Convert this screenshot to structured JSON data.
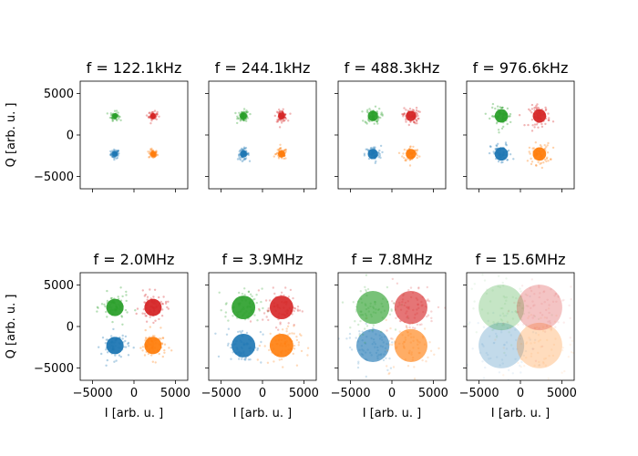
{
  "chart_data": {
    "type": "scatter",
    "layout": "2x4 grid, shared x and y axes",
    "xlabel": "I [arb. u. ]",
    "ylabel": "Q [arb. u. ]",
    "xlim": [
      -6500,
      6500
    ],
    "ylim": [
      -6500,
      6500
    ],
    "xticks": [
      -5000,
      0,
      5000
    ],
    "yticks": [
      -5000,
      0,
      5000
    ],
    "xtick_labels": [
      "−5000",
      "0",
      "5000"
    ],
    "ytick_labels": [
      "−5000",
      "0",
      "5000"
    ],
    "grid": false,
    "series_colors": [
      "#1f77b4",
      "#ff7f0e",
      "#2ca02c",
      "#d62728"
    ],
    "cluster_centers": [
      [
        -2300,
        -2300
      ],
      [
        2300,
        -2300
      ],
      [
        -2300,
        2300
      ],
      [
        2300,
        2300
      ]
    ],
    "panels": [
      {
        "title": "f = 122.1kHz",
        "spread": 350
      },
      {
        "title": "f = 244.1kHz",
        "spread": 450
      },
      {
        "title": "f = 488.3kHz",
        "spread": 650
      },
      {
        "title": "f = 976.6kHz",
        "spread": 850
      },
      {
        "title": "f = 2.0MHz",
        "spread": 1100
      },
      {
        "title": "f = 3.9MHz",
        "spread": 1500
      },
      {
        "title": "f = 7.8MHz",
        "spread": 2100
      },
      {
        "title": "f = 15.6MHz",
        "spread": 2900
      }
    ]
  }
}
